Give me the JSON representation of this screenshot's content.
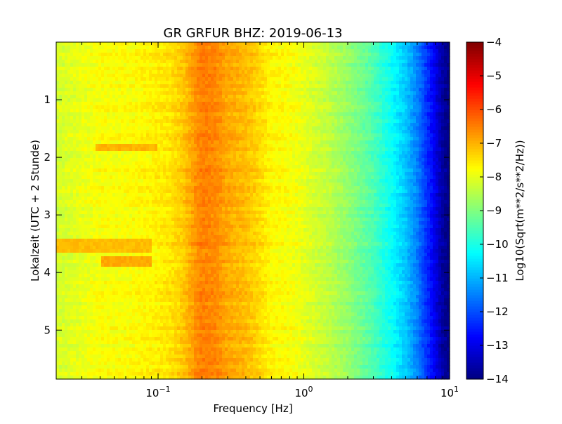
{
  "chart_data": {
    "type": "heatmap",
    "title": "GR GRFUR BHZ: 2019-06-13",
    "xlabel": "Frequency [Hz]",
    "ylabel": "Lokalzeit (UTC + 2 Stunde)",
    "colorbar_label": "Log10(Sqrt(m**2/s**2/Hz))",
    "x_scale": "log",
    "xlim": [
      0.02,
      10
    ],
    "ylim": [
      5.85,
      0.0
    ],
    "y_inverted": true,
    "xticks": [
      {
        "value": 0.1,
        "base": "10",
        "exp": "-1"
      },
      {
        "value": 1,
        "base": "10",
        "exp": "0"
      },
      {
        "value": 10,
        "base": "10",
        "exp": "1"
      }
    ],
    "yticks": [
      1,
      2,
      3,
      4,
      5
    ],
    "ytick_labels": [
      "1",
      "2",
      "3",
      "4",
      "5"
    ],
    "colorbar": {
      "range": [
        -14,
        -4
      ],
      "ticks": [
        -14,
        -13,
        -12,
        -11,
        -10,
        -9,
        -8,
        -7,
        -6,
        -5,
        -4
      ],
      "tick_labels": [
        "−14",
        "−13",
        "−12",
        "−11",
        "−10",
        "−9",
        "−8",
        "−7",
        "−6",
        "−5",
        "−4"
      ],
      "colormap": "jet"
    },
    "spectrum_profile": {
      "frequency_hz": [
        0.02,
        0.04,
        0.06,
        0.08,
        0.1,
        0.12,
        0.15,
        0.18,
        0.2,
        0.25,
        0.3,
        0.4,
        0.5,
        0.6,
        0.8,
        1.0,
        1.5,
        2.0,
        3.0,
        4.0,
        5.0,
        6.0,
        7.0,
        8.0,
        9.0,
        10.0
      ],
      "psd_log10": [
        -8.2,
        -7.8,
        -7.8,
        -7.7,
        -7.6,
        -7.5,
        -7.2,
        -6.7,
        -6.5,
        -6.6,
        -6.9,
        -7.1,
        -7.4,
        -7.7,
        -7.8,
        -8.0,
        -8.4,
        -8.8,
        -9.5,
        -10.2,
        -10.8,
        -11.5,
        -12.3,
        -13.0,
        -13.7,
        -14.0
      ]
    },
    "time_features": {
      "low_freq_bands": [
        {
          "t_start": 1.75,
          "t_end": 1.9,
          "f_start": 0.038,
          "f_end": 0.1,
          "psd_log10": -7.0
        },
        {
          "t_start": 3.4,
          "t_end": 3.65,
          "f_start": 0.02,
          "f_end": 0.09,
          "psd_log10": -7.1
        },
        {
          "t_start": 3.7,
          "t_end": 3.9,
          "f_start": 0.04,
          "f_end": 0.09,
          "psd_log10": -6.9
        }
      ]
    },
    "grid": false,
    "legend": "none"
  }
}
